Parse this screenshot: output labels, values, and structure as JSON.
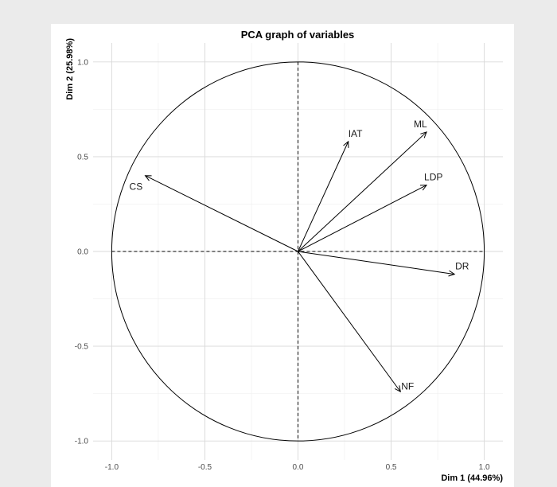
{
  "chart_data": {
    "type": "scatter",
    "title": "PCA graph of variables",
    "xlabel": "Dim 1 (44.96%)",
    "ylabel": "Dim 2 (25.98%)",
    "xlim": [
      -1.1,
      1.1
    ],
    "ylim": [
      -1.1,
      1.1
    ],
    "x_ticks": [
      -1.0,
      -0.5,
      0.0,
      0.5,
      1.0
    ],
    "y_ticks": [
      -1.0,
      -0.5,
      0.0,
      0.5,
      1.0
    ],
    "x_tick_labels": [
      "-1.0",
      "-0.5",
      "0.0",
      "0.5",
      "1.0"
    ],
    "y_tick_labels": [
      "-1.0",
      "-0.5",
      "0.0",
      "0.5",
      "1.0"
    ],
    "grid": true,
    "unit_circle": true,
    "variables": [
      {
        "name": "IAT",
        "x": 0.27,
        "y": 0.58
      },
      {
        "name": "ML",
        "x": 0.69,
        "y": 0.63
      },
      {
        "name": "LDP",
        "x": 0.69,
        "y": 0.35
      },
      {
        "name": "CS",
        "x": -0.82,
        "y": 0.4
      },
      {
        "name": "DR",
        "x": 0.84,
        "y": -0.12
      },
      {
        "name": "NF",
        "x": 0.55,
        "y": -0.74
      }
    ]
  }
}
